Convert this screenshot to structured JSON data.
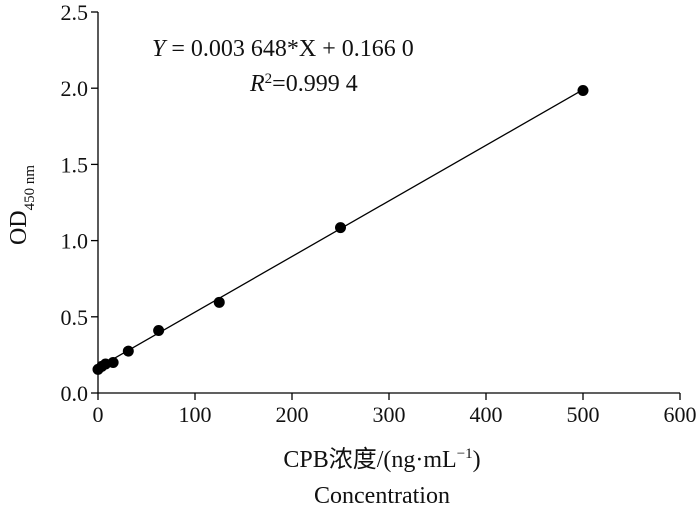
{
  "chart_data": {
    "type": "scatter",
    "x": [
      0,
      3.9,
      7.8,
      15.6,
      31.25,
      62.5,
      125,
      250,
      500
    ],
    "y": [
      0.155,
      0.175,
      0.19,
      0.2,
      0.275,
      0.41,
      0.595,
      1.085,
      1.985
    ],
    "xlim": [
      0,
      600
    ],
    "ylim": [
      0,
      2.5
    ],
    "xticks": [
      "0",
      "100",
      "200",
      "300",
      "400",
      "500",
      "600"
    ],
    "yticks": [
      "0.0",
      "0.5",
      "1.0",
      "1.5",
      "2.0",
      "2.5"
    ],
    "xtick_values": [
      0,
      100,
      200,
      300,
      400,
      500,
      600
    ],
    "ytick_values": [
      0,
      0.5,
      1.0,
      1.5,
      2.0,
      2.5
    ],
    "xlabel": "CPB浓度/(ng·mL",
    "xlabel_sup": "−1",
    "xlabel_close": ")",
    "xlabel2": "Concentration",
    "ylabel": "OD",
    "ylabel_sub": "450 nm",
    "fit": {
      "slope": 0.003648,
      "intercept": 0.166,
      "x_range": [
        0,
        500
      ]
    },
    "equation": {
      "y_var": "Y",
      "rhs": " = 0.003 648*X + 0.166 0",
      "r_var": "R",
      "r_sup": "2",
      "r_rhs": "=0.999 4"
    },
    "grid": false
  }
}
